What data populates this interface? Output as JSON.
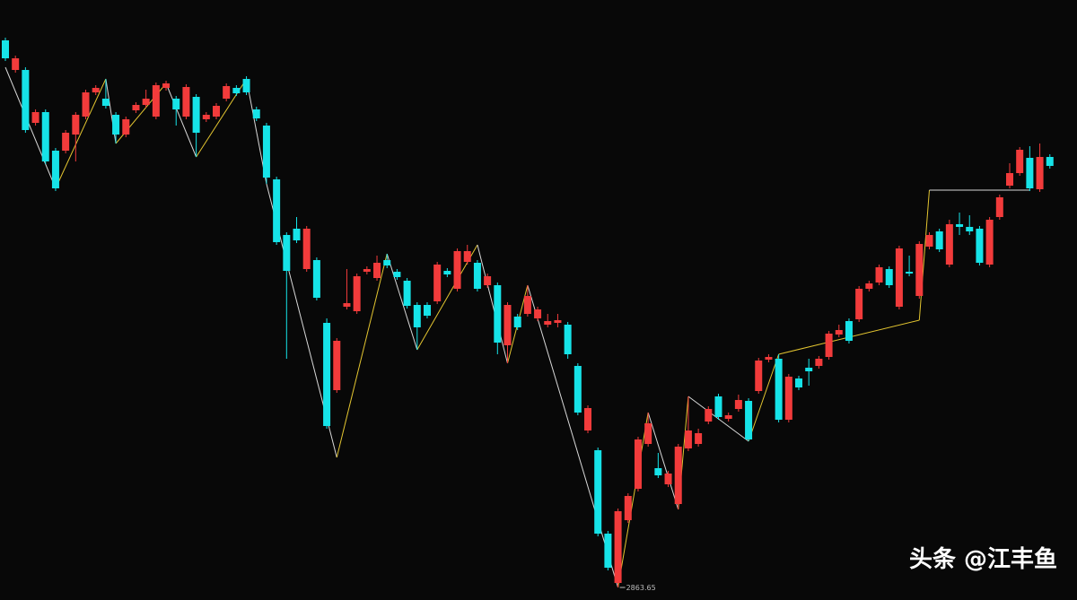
{
  "chart_data": {
    "type": "candlestick",
    "up_color": "#f23b3b",
    "down_color": "#16e3e8",
    "background": "#080808",
    "ylim": [
      2842.65,
      3846.15
    ],
    "open": [
      3778.65,
      3729.15,
      3729.15,
      3640.65,
      3658.65,
      3594.15,
      3594.15,
      3621.15,
      3651.15,
      3691.65,
      3681.15,
      3654.15,
      3621.15,
      3661.65,
      3670.65,
      3651.15,
      3699.15,
      3681.15,
      3651.15,
      3684.15,
      3646.65,
      3651.15,
      3681.15,
      3699.15,
      3714.15,
      3663.15,
      3636.15,
      3546.15,
      3453.15,
      3463.65,
      3396.15,
      3411.15,
      3306.15,
      3193.65,
      3333.15,
      3325.65,
      3391.65,
      3381.15,
      3411.15,
      3391.65,
      3376.65,
      3336.15,
      3336.15,
      3342.15,
      3393.15,
      3363.15,
      3408.15,
      3406.65,
      3369.15,
      3369.15,
      3268.65,
      3316.65,
      3321.15,
      3313.65,
      3303.15,
      3306.15,
      3303.15,
      3234.15,
      3126.15,
      3093.15,
      2953.65,
      2871.15,
      2976.15,
      3028.65,
      3103.65,
      3063.15,
      3036.15,
      3003.15,
      3096.15,
      3103.65,
      3141.15,
      3183.15,
      3145.65,
      3162.15,
      3175.65,
      3192.15,
      3244.65,
      3246.15,
      3144.15,
      3213.15,
      3231.15,
      3234.15,
      3249.15,
      3286.65,
      3309.15,
      3312.15,
      3363.15,
      3373.65,
      3396.15,
      3333.15,
      3391.65,
      3351.15,
      3433.65,
      3459.15,
      3403.65,
      3471.15,
      3466.65,
      3463.65,
      3403.65,
      3483.15,
      3535.65,
      3556.65,
      3582.15,
      3529.65,
      3583.65
    ],
    "high": [
      3783.15,
      3753.15,
      3733.65,
      3663.15,
      3663.15,
      3598.65,
      3628.65,
      3658.65,
      3696.15,
      3703.65,
      3714.15,
      3658.65,
      3651.15,
      3675.15,
      3696.15,
      3708.15,
      3711.15,
      3685.65,
      3705.15,
      3688.65,
      3658.65,
      3673.65,
      3706.65,
      3703.65,
      3718.65,
      3667.65,
      3640.65,
      3550.65,
      3457.65,
      3483.15,
      3468.15,
      3415.65,
      3313.65,
      3280.65,
      3396.15,
      3388.65,
      3400.65,
      3418.65,
      3421.65,
      3396.15,
      3381.15,
      3340.65,
      3340.65,
      3408.15,
      3397.65,
      3430.65,
      3436.65,
      3411.15,
      3388.65,
      3373.65,
      3340.65,
      3321.15,
      3369.15,
      3333.15,
      3321.15,
      3321.15,
      3307.65,
      3238.65,
      3168.15,
      3097.65,
      2958.15,
      2995.65,
      3021.15,
      3115.65,
      3156.15,
      3088.65,
      3058.65,
      3103.65,
      3183.15,
      3129.15,
      3166.65,
      3187.65,
      3156.15,
      3186.15,
      3180.15,
      3247.65,
      3253.65,
      3253.65,
      3220.65,
      3217.65,
      3246.15,
      3250.65,
      3292.65,
      3303.15,
      3313.65,
      3367.65,
      3376.65,
      3403.65,
      3400.65,
      3435.15,
      3418.65,
      3442.65,
      3457.65,
      3463.65,
      3478.65,
      3490.65,
      3486.15,
      3468.15,
      3483.15,
      3520.65,
      3573.15,
      3600.15,
      3601.65,
      3606.15,
      3588.15
    ],
    "low": [
      3744.15,
      3724.65,
      3624.15,
      3636.15,
      3571.65,
      3526.65,
      3589.65,
      3576.15,
      3646.65,
      3687.15,
      3664.65,
      3606.15,
      3616.65,
      3657.15,
      3666.15,
      3646.65,
      3694.65,
      3636.15,
      3646.65,
      3583.65,
      3642.15,
      3646.65,
      3676.65,
      3685.65,
      3687.15,
      3643.65,
      3538.65,
      3436.65,
      3246.15,
      3439.65,
      3391.65,
      3343.65,
      3129.15,
      3189.15,
      3328.65,
      3321.15,
      3387.15,
      3376.65,
      3397.65,
      3378.15,
      3330.15,
      3261.15,
      3313.65,
      3337.65,
      3382.65,
      3358.65,
      3403.65,
      3358.65,
      3364.65,
      3253.65,
      3238.65,
      3294.15,
      3316.65,
      3309.15,
      3298.65,
      3298.65,
      3246.15,
      3151.65,
      3121.65,
      2949.15,
      2892.15,
      2863.65,
      2971.65,
      3024.15,
      3099.15,
      3046.65,
      3031.65,
      2994.15,
      3091.65,
      3099.15,
      3136.65,
      3144.15,
      3141.15,
      3157.65,
      3108.15,
      3187.65,
      3240.15,
      3139.65,
      3139.65,
      3193.65,
      3201.15,
      3229.65,
      3244.65,
      3282.15,
      3271.65,
      3307.65,
      3358.65,
      3369.15,
      3364.65,
      3328.65,
      3384.15,
      3346.65,
      3429.15,
      3424.65,
      3399.15,
      3453.15,
      3453.15,
      3402.15,
      3399.15,
      3478.65,
      3531.15,
      3552.15,
      3526.65,
      3525.15,
      3564.15
    ],
    "close": [
      3748.65,
      3748.65,
      3628.65,
      3658.65,
      3576.15,
      3531.15,
      3624.15,
      3654.15,
      3691.65,
      3699.15,
      3669.15,
      3621.15,
      3646.65,
      3670.65,
      3681.15,
      3703.65,
      3706.65,
      3663.15,
      3700.65,
      3624.15,
      3654.15,
      3669.15,
      3702.15,
      3690.15,
      3691.65,
      3648.15,
      3549.15,
      3441.15,
      3393.15,
      3444.15,
      3463.65,
      3348.15,
      3133.65,
      3276.15,
      3339.15,
      3384.15,
      3396.15,
      3406.65,
      3402.15,
      3382.65,
      3334.65,
      3298.65,
      3318.15,
      3403.65,
      3387.15,
      3426.15,
      3426.15,
      3363.15,
      3384.15,
      3273.15,
      3336.15,
      3298.65,
      3351.15,
      3328.65,
      3309.15,
      3310.65,
      3253.65,
      3156.15,
      3163.65,
      2953.65,
      2896.65,
      2991.15,
      3016.65,
      3111.15,
      3138.15,
      3051.15,
      3054.15,
      3099.15,
      3126.15,
      3121.65,
      3162.15,
      3148.65,
      3151.65,
      3177.15,
      3111.15,
      3243.15,
      3249.15,
      3144.15,
      3216.15,
      3198.15,
      3225.15,
      3246.15,
      3288.15,
      3294.15,
      3276.15,
      3363.15,
      3372.15,
      3399.15,
      3369.15,
      3430.65,
      3388.65,
      3438.15,
      3453.15,
      3429.15,
      3471.15,
      3466.65,
      3459.15,
      3406.65,
      3478.65,
      3516.15,
      3556.65,
      3595.65,
      3531.15,
      3583.65,
      3568.65
    ],
    "zigzag": {
      "up_color": "#e3c530",
      "down_color": "#d8d8d8",
      "x": [
        0,
        5,
        10,
        11,
        16,
        19,
        24,
        26,
        33,
        38,
        41,
        47,
        50,
        52,
        61,
        64,
        67,
        68,
        74,
        77,
        91,
        92,
        102
      ],
      "values": [
        3733.65,
        3531.15,
        3714.15,
        3606.15,
        3706.65,
        3583.65,
        3714.15,
        3538.65,
        3081.15,
        3421.65,
        3261.15,
        3436.65,
        3238.65,
        3369.15,
        2863.65,
        3156.15,
        2994.15,
        3183.15,
        3108.15,
        3253.65,
        3310.65,
        3528.15,
        3528.15
      ]
    },
    "low_label_index": 61,
    "watermark": "头条 @江丰鱼"
  }
}
